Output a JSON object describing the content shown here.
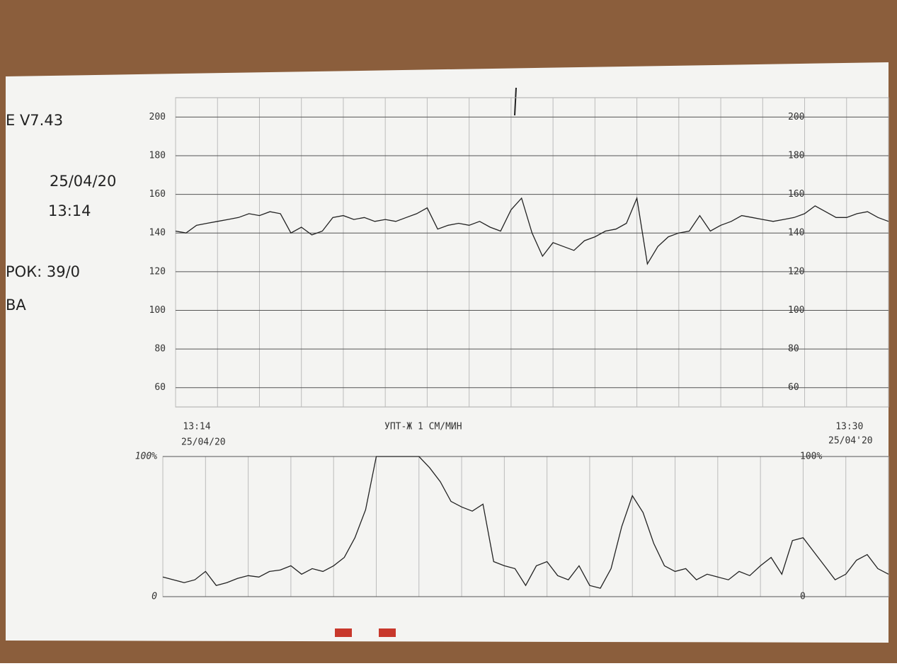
{
  "header": {
    "version": "E V7.43",
    "date": "25/04/20",
    "time": "13:14",
    "term": "РОК: 39/0",
    "name": "ВА"
  },
  "chart_data": [
    {
      "type": "line",
      "color": "#222222",
      "ylim": [
        50,
        210
      ],
      "yticks": [
        60,
        80,
        100,
        120,
        140,
        160,
        180,
        200
      ],
      "grid": true,
      "categories": [
        "13:14",
        null,
        null,
        null,
        null,
        null,
        null,
        null,
        null,
        null,
        null,
        null,
        null,
        null,
        null,
        null,
        null,
        null,
        null,
        null,
        null,
        null,
        null,
        null,
        null,
        null,
        null,
        null,
        null,
        null,
        null,
        null,
        null,
        null,
        null,
        null,
        null,
        null,
        null,
        null,
        null,
        null,
        null,
        null,
        null,
        null,
        null,
        null,
        null,
        null,
        null,
        null,
        null,
        null,
        null,
        null,
        null,
        null,
        null,
        null,
        null,
        null,
        null,
        null,
        "13:30",
        null,
        null,
        null,
        null
      ],
      "date_labels": [
        "25/04/20",
        "25/04'20"
      ],
      "annotation": "УПТ-Ж  1 СМ/МИН",
      "values": [
        141,
        140,
        144,
        145,
        146,
        147,
        148,
        150,
        149,
        151,
        150,
        140,
        143,
        139,
        141,
        148,
        149,
        147,
        148,
        146,
        147,
        146,
        148,
        150,
        153,
        142,
        144,
        145,
        144,
        146,
        143,
        141,
        152,
        158,
        140,
        128,
        135,
        133,
        131,
        136,
        138,
        141,
        142,
        145,
        158,
        124,
        133,
        138,
        140,
        141,
        149,
        141,
        144,
        146,
        149,
        148,
        147,
        146,
        147,
        148,
        150,
        154,
        151,
        148,
        148,
        150,
        151,
        148,
        146
      ]
    },
    {
      "type": "line",
      "color": "#222222",
      "ylim": [
        0,
        100
      ],
      "yticks": [
        0,
        {
          "value": 100,
          "label": "100%"
        }
      ],
      "grid": true,
      "values": [
        14,
        12,
        10,
        12,
        18,
        8,
        10,
        13,
        15,
        14,
        18,
        19,
        22,
        16,
        20,
        18,
        22,
        28,
        42,
        62,
        100,
        100,
        100,
        100,
        100,
        92,
        82,
        68,
        64,
        61,
        66,
        25,
        22,
        20,
        8,
        22,
        25,
        15,
        12,
        22,
        8,
        6,
        20,
        50,
        72,
        60,
        38,
        22,
        18,
        20,
        12,
        16,
        14,
        12,
        18,
        15,
        22,
        28,
        16,
        40,
        42,
        32,
        22,
        12,
        16,
        26,
        30,
        20,
        16
      ]
    }
  ]
}
